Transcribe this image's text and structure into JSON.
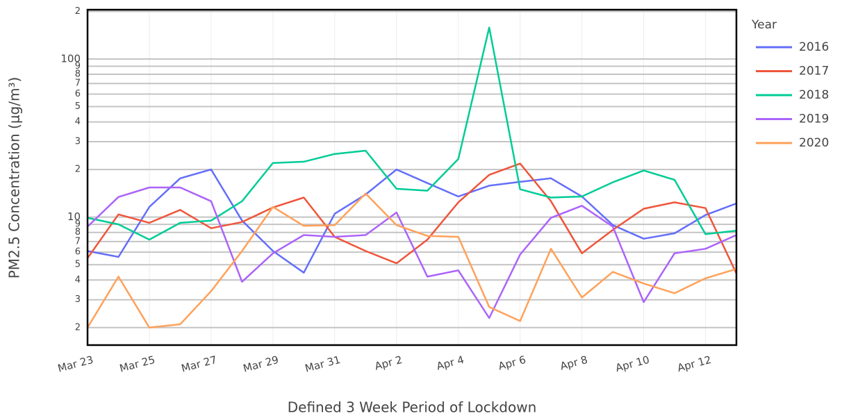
{
  "chart_data": {
    "type": "line",
    "xlabel": "Defined 3 Week Period of Lockdown",
    "ylabel": "PM2.5 Concentration (μg/m³)",
    "legend_title": "Year",
    "legend": "right",
    "log_y": true,
    "grid": true,
    "categories": [
      "Mar 23",
      null,
      "Mar 25",
      null,
      "Mar 27",
      null,
      "Mar 29",
      null,
      "Mar 31",
      null,
      "Apr 2",
      null,
      "Apr 4",
      null,
      "Apr 6",
      null,
      "Apr 8",
      null,
      "Apr 10",
      null,
      "Apr 12",
      null
    ],
    "ylim": [
      1.55,
      205
    ],
    "yticks": [
      2,
      3,
      4,
      5,
      6,
      7,
      8,
      9,
      10,
      {
        "value": 20,
        "label": "2"
      },
      {
        "value": 30,
        "label": "3"
      },
      {
        "value": 40,
        "label": "4"
      },
      {
        "value": 50,
        "label": "5"
      },
      {
        "value": 60,
        "label": "6"
      },
      {
        "value": 70,
        "label": "7"
      },
      {
        "value": 80,
        "label": "8"
      },
      {
        "value": 90,
        "label": "9"
      },
      100,
      {
        "value": 200,
        "label": "2"
      }
    ],
    "series": [
      {
        "name": "2016",
        "color": "#636efa",
        "values": [
          6.1,
          5.6,
          11.6,
          17.6,
          20,
          9.5,
          6.1,
          4.45,
          10.5,
          13.9,
          20,
          16.4,
          13.5,
          15.8,
          16.7,
          17.6,
          13.5,
          8.9,
          7.3,
          7.9,
          10.3,
          12.2
        ]
      },
      {
        "name": "2017",
        "color": "#ef553b",
        "values": [
          5.5,
          10.4,
          9.2,
          11.1,
          8.5,
          9.3,
          11.5,
          13.3,
          7.5,
          6.1,
          5.1,
          7.2,
          12.4,
          18.5,
          21.8,
          12.6,
          5.9,
          8.3,
          11.3,
          12.4,
          11.4,
          4.4
        ]
      },
      {
        "name": "2018",
        "color": "#00cc96",
        "values": [
          9.9,
          9.0,
          7.2,
          9.2,
          9.5,
          12.6,
          22.0,
          22.4,
          25.1,
          26.3,
          15.1,
          14.7,
          23.3,
          158,
          15.0,
          13.3,
          13.5,
          16.6,
          19.7,
          17.2,
          7.8,
          8.2
        ]
      },
      {
        "name": "2019",
        "color": "#ab63fa",
        "values": [
          8.7,
          13.4,
          15.4,
          15.4,
          12.6,
          3.9,
          5.9,
          7.7,
          7.5,
          7.7,
          10.7,
          4.2,
          4.6,
          2.3,
          5.8,
          9.9,
          11.8,
          8.7,
          2.9,
          5.9,
          6.3,
          7.7
        ]
      },
      {
        "name": "2020",
        "color": "#ffa15a",
        "values": [
          2.0,
          4.2,
          2.0,
          2.1,
          3.4,
          6.1,
          11.6,
          8.8,
          8.9,
          14.1,
          8.9,
          7.6,
          7.5,
          2.7,
          2.2,
          6.3,
          3.1,
          4.5,
          3.8,
          3.3,
          4.1,
          4.7
        ]
      }
    ]
  }
}
